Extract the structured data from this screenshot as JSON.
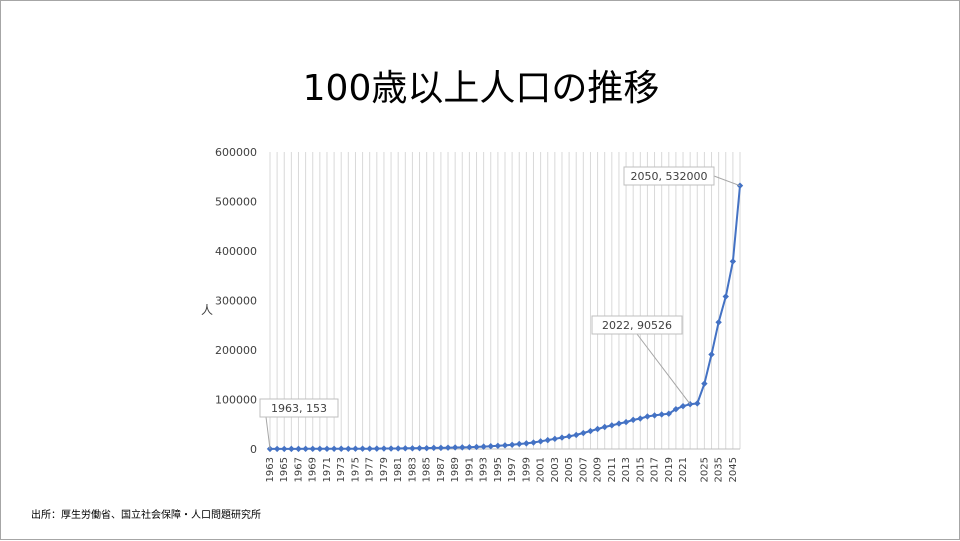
{
  "slide": {
    "title": "100歳以上人口の推移",
    "source": "出所：厚生労働省、国立社会保障・人口問題研究所"
  },
  "chart_data": {
    "type": "line",
    "title": "100歳以上人口の推移",
    "xlabel": "",
    "ylabel": "人",
    "ylim": [
      0,
      600000
    ],
    "yticks": [
      0,
      100000,
      200000,
      300000,
      400000,
      500000,
      600000
    ],
    "grid": "vertical",
    "legend": "none",
    "color": "#4472c4",
    "x": [
      "1963",
      "1964",
      "1965",
      "1966",
      "1967",
      "1968",
      "1969",
      "1970",
      "1971",
      "1972",
      "1973",
      "1974",
      "1975",
      "1976",
      "1977",
      "1978",
      "1979",
      "1980",
      "1981",
      "1982",
      "1983",
      "1984",
      "1985",
      "1986",
      "1987",
      "1988",
      "1989",
      "1990",
      "1991",
      "1992",
      "1993",
      "1994",
      "1995",
      "1996",
      "1997",
      "1998",
      "1999",
      "2000",
      "2001",
      "2002",
      "2003",
      "2004",
      "2005",
      "2006",
      "2007",
      "2008",
      "2009",
      "2010",
      "2011",
      "2012",
      "2013",
      "2014",
      "2015",
      "2016",
      "2017",
      "2018",
      "2019",
      "2020",
      "2021",
      "2022",
      "2023",
      "2025",
      "2030",
      "2035",
      "2040",
      "2045",
      "2050"
    ],
    "x_tick_labels": [
      "1963",
      "1965",
      "1967",
      "1969",
      "1971",
      "1973",
      "1975",
      "1977",
      "1979",
      "1981",
      "1983",
      "1985",
      "1987",
      "1989",
      "1991",
      "1993",
      "1995",
      "1997",
      "1999",
      "2001",
      "2003",
      "2005",
      "2007",
      "2009",
      "2011",
      "2013",
      "2015",
      "2017",
      "2019",
      "2021",
      "2025",
      "2035",
      "2045"
    ],
    "series": [
      {
        "values": [
          153,
          191,
          198,
          252,
          255,
          327,
          310,
          310,
          339,
          405,
          495,
          427,
          548,
          666,
          700,
          752,
          937,
          968,
          1072,
          1354,
          1354,
          1740,
          1740,
          2271,
          2271,
          2668,
          3078,
          3298,
          3625,
          4152,
          4802,
          5593,
          6378,
          7373,
          8491,
          10158,
          11346,
          13036,
          15475,
          17934,
          20561,
          23038,
          25554,
          28395,
          32295,
          36276,
          40399,
          44449,
          47756,
          51376,
          54397,
          58820,
          61568,
          65692,
          67824,
          69785,
          71274,
          80450,
          86510,
          90526,
          92139,
          132000,
          191000,
          256000,
          308000,
          379000,
          532000
        ]
      }
    ],
    "data_labels": [
      {
        "x": "1963",
        "text": "1963, 153"
      },
      {
        "x": "2022",
        "text": "2022, 90526"
      },
      {
        "x": "2050",
        "text": "2050, 532000"
      }
    ]
  }
}
